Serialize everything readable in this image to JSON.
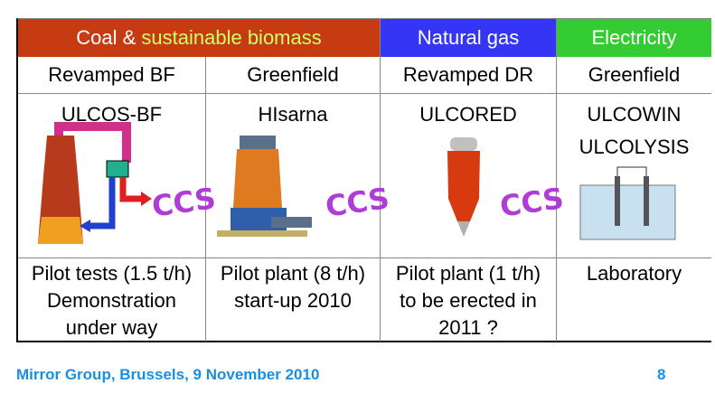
{
  "header": {
    "coal": "Coal & ",
    "biomass": "sustainable biomass",
    "gas": "Natural gas",
    "electricity": "Electricity"
  },
  "routes": [
    "Revamped BF",
    "Greenfield",
    "Revamped DR",
    "Greenfield"
  ],
  "processes": [
    [
      "ULCOS-BF"
    ],
    [
      "HIsarna"
    ],
    [
      "ULCORED"
    ],
    [
      "ULCOWIN",
      "ULCOLYSIS"
    ]
  ],
  "ccs_label": "CCS",
  "status": [
    [
      "Pilot tests (1.5 t/h)",
      "Demonstration",
      "under way"
    ],
    [
      "Pilot plant (8 t/h)",
      "start-up 2010"
    ],
    [
      "Pilot plant (1 t/h)",
      "to be erected in",
      "2011 ?"
    ],
    [
      "Laboratory"
    ]
  ],
  "footer": {
    "text": "Mirror Group, Brussels, 9 November 2010",
    "page": "8"
  }
}
